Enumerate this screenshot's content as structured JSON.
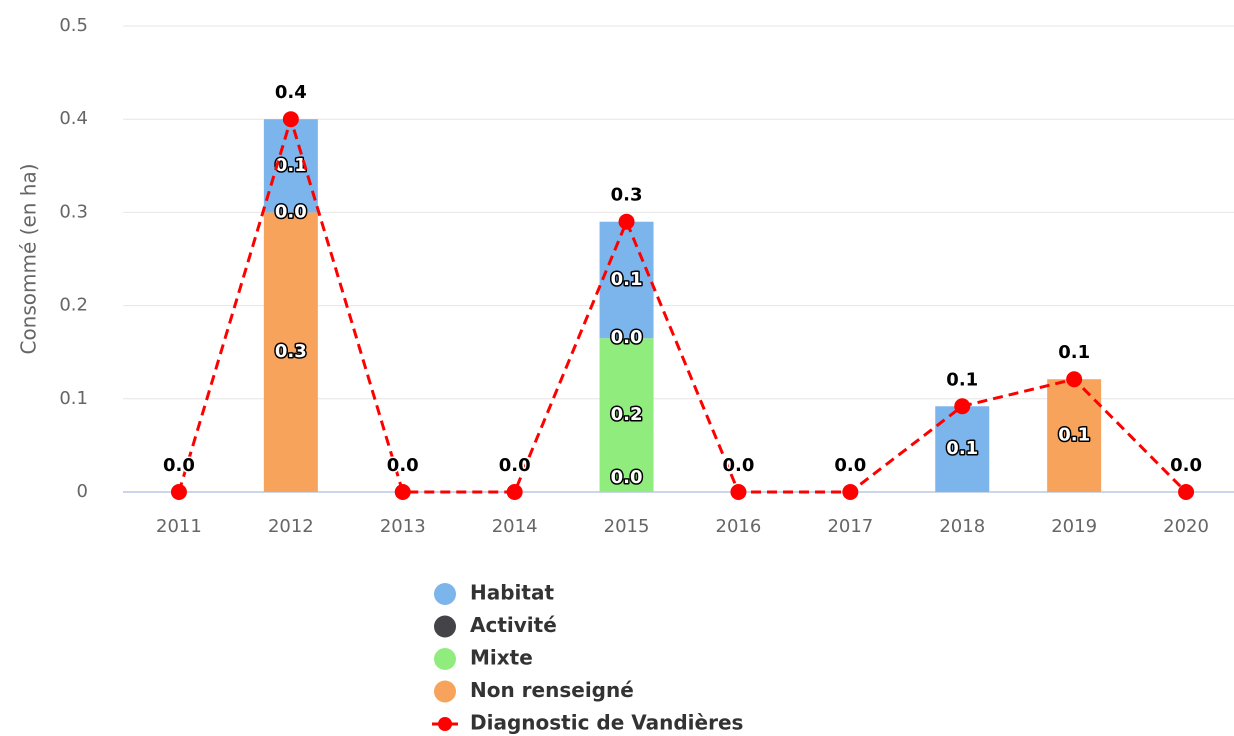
{
  "chart_data": {
    "type": "bar",
    "y_axis_label": "Consommé (en ha)",
    "categories": [
      "2011",
      "2012",
      "2013",
      "2014",
      "2015",
      "2016",
      "2017",
      "2018",
      "2019",
      "2020"
    ],
    "ylim": [
      0,
      0.5
    ],
    "yticks": [
      0,
      0.1,
      0.2,
      0.3,
      0.4,
      0.5
    ],
    "grid": true,
    "stacked": true,
    "series": [
      {
        "name": "Habitat",
        "color": "#7cb5ec",
        "values": [
          null,
          0.1,
          null,
          null,
          0.125,
          null,
          null,
          0.092,
          null,
          null
        ],
        "value_labels": [
          null,
          "0.1",
          null,
          null,
          "0.1",
          null,
          null,
          "0.1",
          null,
          null
        ]
      },
      {
        "name": "Activité",
        "color": "#434348",
        "values": [
          null,
          0,
          null,
          null,
          0,
          null,
          null,
          null,
          null,
          null
        ],
        "value_labels": [
          null,
          "0.0",
          null,
          null,
          "0.0",
          null,
          null,
          null,
          null,
          null
        ]
      },
      {
        "name": "Mixte",
        "color": "#90ed7d",
        "values": [
          null,
          null,
          null,
          null,
          0.165,
          null,
          null,
          null,
          null,
          null
        ],
        "value_labels": [
          null,
          null,
          null,
          null,
          "0.2",
          null,
          null,
          null,
          null,
          null
        ]
      },
      {
        "name": "Non renseigné",
        "color": "#f7a35c",
        "values": [
          null,
          0.3,
          null,
          null,
          0,
          null,
          null,
          null,
          0.121,
          null
        ],
        "value_labels": [
          null,
          "0.3",
          null,
          null,
          "0.0",
          null,
          null,
          null,
          "0.1",
          null
        ]
      },
      {
        "name": "Diagnostic de Vandières",
        "type": "line",
        "color": "#ff0000",
        "values": [
          0,
          0.4,
          0,
          0,
          0.29,
          0,
          0,
          0.092,
          0.121,
          0
        ],
        "value_labels": [
          "0.0",
          "0.4",
          "0.0",
          "0.0",
          "0.3",
          "0.0",
          "0.0",
          "0.1",
          "0.1",
          "0.0"
        ]
      }
    ]
  }
}
